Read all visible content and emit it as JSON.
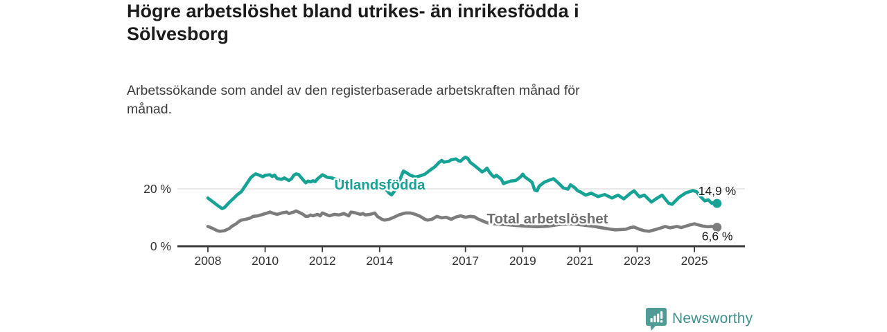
{
  "header": {
    "title_lines": [
      "Högre arbetslöshet bland utrikes- än inrikesfödda i",
      "Sölvesborg"
    ],
    "subtitle_lines": [
      "Arbetssökande som andel av den registerbaserade arbetskraften månad för",
      "månad."
    ]
  },
  "footer": {
    "brand_name": "Newsworthy"
  },
  "colors": {
    "foreign_born_line": "#17a296",
    "total_line": "#7c7c7c",
    "total_label": "#6f6f6f",
    "axis": "#3a3a3a",
    "tick_text": "#333333",
    "gridline": "#d9d9d9",
    "end_label_text": "#1b1b1b",
    "brand_teal": "#4f9b96"
  },
  "chart_data": {
    "type": "line",
    "title": "Högre arbetslöshet bland utrikes- än inrikesfödda i Sölvesborg",
    "subtitle": "Arbetssökande som andel av den registerbaserade arbetskraften månad för månad.",
    "xlabel": "",
    "ylabel": "",
    "grid": "horizontal-only",
    "legend_position": "inline-labels",
    "x_axis": {
      "tick_years": [
        2008,
        2010,
        2012,
        2014,
        2017,
        2019,
        2021,
        2023,
        2025
      ],
      "range": [
        2006.9,
        2026.8
      ]
    },
    "y_axis": {
      "tick_values": [
        0,
        20
      ],
      "tick_labels": [
        "0 %",
        "20 %"
      ],
      "range": [
        0,
        34
      ],
      "gridlines": [
        20
      ]
    },
    "series": [
      {
        "name": "Utlandsfödda",
        "end_label": "14,9 %",
        "end_value": 14.9,
        "points": [
          [
            2008.0,
            16.8
          ],
          [
            2008.17,
            15.5
          ],
          [
            2008.33,
            14.3
          ],
          [
            2008.5,
            13.1
          ],
          [
            2008.58,
            13.5
          ],
          [
            2008.75,
            15.3
          ],
          [
            2008.92,
            16.9
          ],
          [
            2009.0,
            17.7
          ],
          [
            2009.17,
            19.0
          ],
          [
            2009.33,
            21.4
          ],
          [
            2009.5,
            23.9
          ],
          [
            2009.58,
            24.6
          ],
          [
            2009.67,
            25.2
          ],
          [
            2009.83,
            24.6
          ],
          [
            2009.92,
            24.2
          ],
          [
            2010.0,
            24.7
          ],
          [
            2010.17,
            24.9
          ],
          [
            2010.25,
            24.3
          ],
          [
            2010.33,
            24.8
          ],
          [
            2010.42,
            23.6
          ],
          [
            2010.58,
            23.3
          ],
          [
            2010.67,
            23.8
          ],
          [
            2010.83,
            22.9
          ],
          [
            2010.92,
            23.5
          ],
          [
            2011.0,
            24.7
          ],
          [
            2011.08,
            25.2
          ],
          [
            2011.17,
            25.0
          ],
          [
            2011.33,
            23.1
          ],
          [
            2011.42,
            22.1
          ],
          [
            2011.5,
            22.7
          ],
          [
            2011.58,
            22.4
          ],
          [
            2011.67,
            22.8
          ],
          [
            2011.75,
            22.5
          ],
          [
            2011.83,
            23.5
          ],
          [
            2011.92,
            24.2
          ],
          [
            2012.0,
            24.9
          ],
          [
            2012.08,
            24.5
          ],
          [
            2012.17,
            24.0
          ],
          [
            2012.33,
            23.8
          ],
          [
            2012.5,
            23.2
          ],
          [
            2012.67,
            22.7
          ],
          [
            2012.83,
            22.4
          ],
          [
            2013.0,
            22.7
          ],
          [
            2013.17,
            22.0
          ],
          [
            2013.33,
            21.5
          ],
          [
            2013.5,
            21.1
          ],
          [
            2013.67,
            20.8
          ],
          [
            2013.83,
            20.5
          ],
          [
            2014.0,
            20.8
          ],
          [
            2014.17,
            20.5
          ],
          [
            2014.33,
            18.5
          ],
          [
            2014.42,
            17.9
          ],
          [
            2014.58,
            20.0
          ],
          [
            2014.67,
            22.3
          ],
          [
            2014.83,
            26.2
          ],
          [
            2014.92,
            25.7
          ],
          [
            2015.08,
            24.7
          ],
          [
            2015.25,
            24.1
          ],
          [
            2015.42,
            24.5
          ],
          [
            2015.58,
            25.1
          ],
          [
            2015.75,
            26.4
          ],
          [
            2015.92,
            27.6
          ],
          [
            2016.08,
            29.2
          ],
          [
            2016.17,
            29.9
          ],
          [
            2016.25,
            29.3
          ],
          [
            2016.42,
            29.6
          ],
          [
            2016.5,
            30.1
          ],
          [
            2016.67,
            30.4
          ],
          [
            2016.75,
            29.8
          ],
          [
            2016.83,
            29.6
          ],
          [
            2016.92,
            30.5
          ],
          [
            2017.0,
            31.0
          ],
          [
            2017.08,
            30.6
          ],
          [
            2017.17,
            29.2
          ],
          [
            2017.33,
            28.0
          ],
          [
            2017.5,
            26.6
          ],
          [
            2017.58,
            25.9
          ],
          [
            2017.67,
            26.4
          ],
          [
            2017.75,
            27.2
          ],
          [
            2017.83,
            25.9
          ],
          [
            2017.92,
            24.8
          ],
          [
            2018.0,
            24.1
          ],
          [
            2018.08,
            24.7
          ],
          [
            2018.25,
            23.4
          ],
          [
            2018.33,
            21.8
          ],
          [
            2018.42,
            22.2
          ],
          [
            2018.58,
            22.7
          ],
          [
            2018.75,
            22.9
          ],
          [
            2018.92,
            24.1
          ],
          [
            2019.0,
            25.1
          ],
          [
            2019.08,
            24.1
          ],
          [
            2019.25,
            22.9
          ],
          [
            2019.33,
            22.2
          ],
          [
            2019.42,
            19.6
          ],
          [
            2019.5,
            19.3
          ],
          [
            2019.58,
            21.0
          ],
          [
            2019.75,
            22.3
          ],
          [
            2019.92,
            23.0
          ],
          [
            2020.08,
            23.5
          ],
          [
            2020.25,
            22.0
          ],
          [
            2020.42,
            20.3
          ],
          [
            2020.58,
            19.9
          ],
          [
            2020.67,
            21.4
          ],
          [
            2020.83,
            20.3
          ],
          [
            2020.92,
            19.3
          ],
          [
            2021.0,
            19.0
          ],
          [
            2021.2,
            17.8
          ],
          [
            2021.39,
            18.5
          ],
          [
            2021.63,
            17.3
          ],
          [
            2021.87,
            18.0
          ],
          [
            2022.12,
            16.8
          ],
          [
            2022.33,
            17.8
          ],
          [
            2022.53,
            16.5
          ],
          [
            2022.77,
            18.5
          ],
          [
            2022.89,
            19.3
          ],
          [
            2023.08,
            17.2
          ],
          [
            2023.25,
            17.8
          ],
          [
            2023.5,
            15.4
          ],
          [
            2023.67,
            16.6
          ],
          [
            2023.87,
            17.8
          ],
          [
            2024.1,
            15.0
          ],
          [
            2024.22,
            14.6
          ],
          [
            2024.46,
            17.0
          ],
          [
            2024.7,
            18.6
          ],
          [
            2024.95,
            19.4
          ],
          [
            2025.07,
            19.0
          ],
          [
            2025.24,
            17.0
          ],
          [
            2025.36,
            15.8
          ],
          [
            2025.48,
            16.2
          ],
          [
            2025.6,
            15.0
          ],
          [
            2025.7,
            15.3
          ],
          [
            2025.79,
            14.9
          ]
        ]
      },
      {
        "name": "Total arbetslöshet",
        "end_label": "6,6 %",
        "end_value": 6.6,
        "points": [
          [
            2008.0,
            6.9
          ],
          [
            2008.17,
            6.2
          ],
          [
            2008.33,
            5.4
          ],
          [
            2008.42,
            5.2
          ],
          [
            2008.58,
            5.4
          ],
          [
            2008.75,
            6.2
          ],
          [
            2008.83,
            6.9
          ],
          [
            2009.0,
            7.9
          ],
          [
            2009.08,
            8.6
          ],
          [
            2009.17,
            9.1
          ],
          [
            2009.33,
            9.4
          ],
          [
            2009.5,
            9.9
          ],
          [
            2009.58,
            10.4
          ],
          [
            2009.75,
            10.6
          ],
          [
            2009.92,
            11.1
          ],
          [
            2010.08,
            11.6
          ],
          [
            2010.17,
            11.9
          ],
          [
            2010.25,
            11.6
          ],
          [
            2010.42,
            11.1
          ],
          [
            2010.58,
            11.6
          ],
          [
            2010.75,
            11.9
          ],
          [
            2010.83,
            11.4
          ],
          [
            2011.0,
            11.9
          ],
          [
            2011.08,
            12.3
          ],
          [
            2011.17,
            11.9
          ],
          [
            2011.33,
            11.1
          ],
          [
            2011.42,
            10.4
          ],
          [
            2011.5,
            10.4
          ],
          [
            2011.58,
            10.9
          ],
          [
            2011.67,
            10.6
          ],
          [
            2011.83,
            11.1
          ],
          [
            2011.92,
            10.6
          ],
          [
            2012.0,
            11.6
          ],
          [
            2012.17,
            10.9
          ],
          [
            2012.25,
            10.6
          ],
          [
            2012.42,
            11.1
          ],
          [
            2012.58,
            10.9
          ],
          [
            2012.75,
            11.4
          ],
          [
            2012.92,
            10.6
          ],
          [
            2013.0,
            11.9
          ],
          [
            2013.17,
            11.6
          ],
          [
            2013.33,
            11.1
          ],
          [
            2013.42,
            11.4
          ],
          [
            2013.5,
            10.9
          ],
          [
            2013.67,
            11.1
          ],
          [
            2013.83,
            11.6
          ],
          [
            2013.92,
            10.4
          ],
          [
            2014.08,
            9.4
          ],
          [
            2014.17,
            9.1
          ],
          [
            2014.33,
            9.4
          ],
          [
            2014.5,
            10.1
          ],
          [
            2014.67,
            10.9
          ],
          [
            2014.83,
            11.4
          ],
          [
            2014.92,
            11.6
          ],
          [
            2015.08,
            11.6
          ],
          [
            2015.25,
            11.1
          ],
          [
            2015.42,
            10.4
          ],
          [
            2015.58,
            9.4
          ],
          [
            2015.67,
            9.1
          ],
          [
            2015.83,
            9.4
          ],
          [
            2016.0,
            10.4
          ],
          [
            2016.17,
            9.9
          ],
          [
            2016.33,
            10.1
          ],
          [
            2016.5,
            9.4
          ],
          [
            2016.67,
            10.2
          ],
          [
            2016.83,
            10.6
          ],
          [
            2017.0,
            10.1
          ],
          [
            2017.17,
            10.4
          ],
          [
            2017.33,
            10.2
          ],
          [
            2017.42,
            9.6
          ],
          [
            2017.58,
            8.9
          ],
          [
            2017.75,
            8.2
          ],
          [
            2017.92,
            7.9
          ],
          [
            2018.3,
            7.6
          ],
          [
            2018.7,
            7.3
          ],
          [
            2019.1,
            7.0
          ],
          [
            2019.5,
            6.8
          ],
          [
            2019.9,
            7.0
          ],
          [
            2020.3,
            7.6
          ],
          [
            2020.7,
            7.8
          ],
          [
            2021.1,
            7.4
          ],
          [
            2021.5,
            6.9
          ],
          [
            2021.9,
            6.2
          ],
          [
            2022.1,
            5.9
          ],
          [
            2022.24,
            5.7
          ],
          [
            2022.4,
            5.8
          ],
          [
            2022.6,
            5.9
          ],
          [
            2022.77,
            6.5
          ],
          [
            2022.89,
            6.7
          ],
          [
            2023.08,
            5.9
          ],
          [
            2023.25,
            5.4
          ],
          [
            2023.42,
            5.2
          ],
          [
            2023.6,
            5.7
          ],
          [
            2023.8,
            6.3
          ],
          [
            2023.98,
            6.9
          ],
          [
            2024.15,
            6.4
          ],
          [
            2024.39,
            6.9
          ],
          [
            2024.54,
            6.5
          ],
          [
            2024.7,
            7.0
          ],
          [
            2024.87,
            7.5
          ],
          [
            2025.0,
            7.8
          ],
          [
            2025.15,
            7.4
          ],
          [
            2025.3,
            7.0
          ],
          [
            2025.45,
            6.8
          ],
          [
            2025.6,
            6.9
          ],
          [
            2025.79,
            6.6
          ]
        ]
      }
    ]
  }
}
